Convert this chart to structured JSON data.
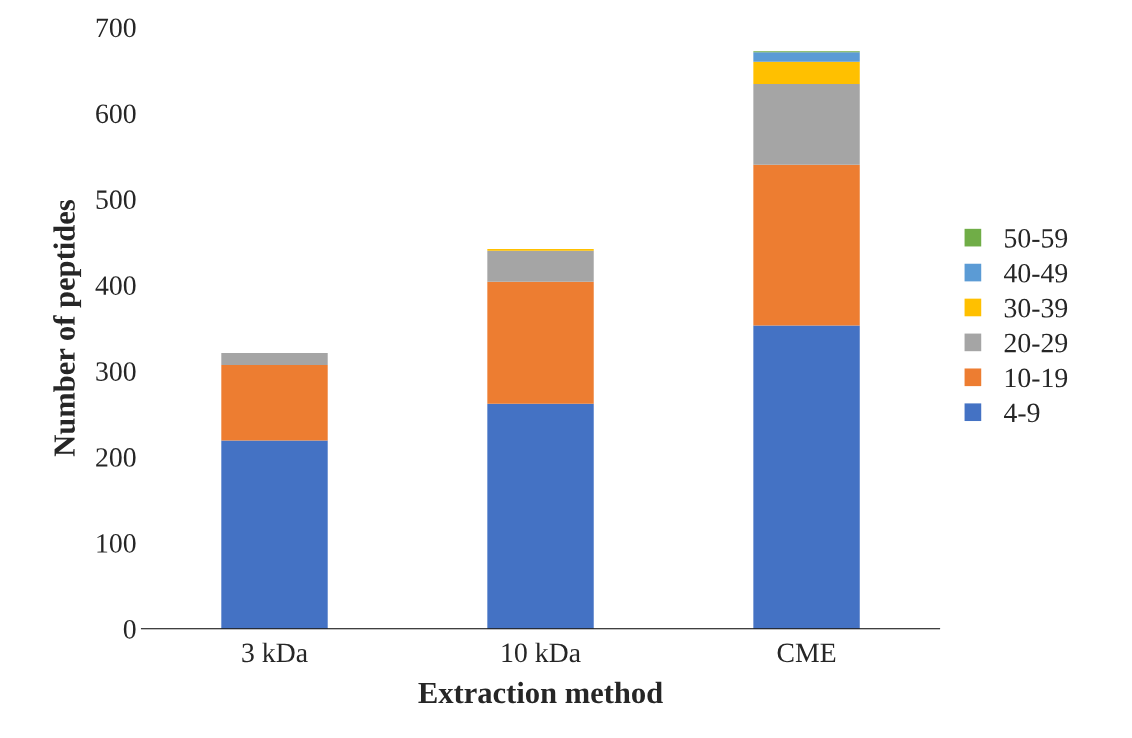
{
  "chart_data": {
    "type": "bar",
    "stacked": true,
    "xlabel": "Extraction method",
    "ylabel": "Number of peptides",
    "categories": [
      "3 kDa",
      "10 kDa",
      "CME"
    ],
    "series": [
      {
        "name": "4-9",
        "color": "#4472c4",
        "values": [
          219,
          262,
          353
        ]
      },
      {
        "name": "10-19",
        "color": "#ed7d31",
        "values": [
          88,
          142,
          187
        ]
      },
      {
        "name": "20-29",
        "color": "#a5a5a5",
        "values": [
          14,
          36,
          94
        ]
      },
      {
        "name": "30-39",
        "color": "#ffc000",
        "values": [
          0,
          2,
          26
        ]
      },
      {
        "name": "40-49",
        "color": "#5b9bd5",
        "values": [
          0,
          0,
          11
        ]
      },
      {
        "name": "50-59",
        "color": "#70ad47",
        "values": [
          0,
          0,
          1
        ]
      }
    ],
    "ylim": [
      0,
      700
    ],
    "yticks": [
      0,
      100,
      200,
      300,
      400,
      500,
      600,
      700
    ],
    "grid": false,
    "legend": "right"
  }
}
